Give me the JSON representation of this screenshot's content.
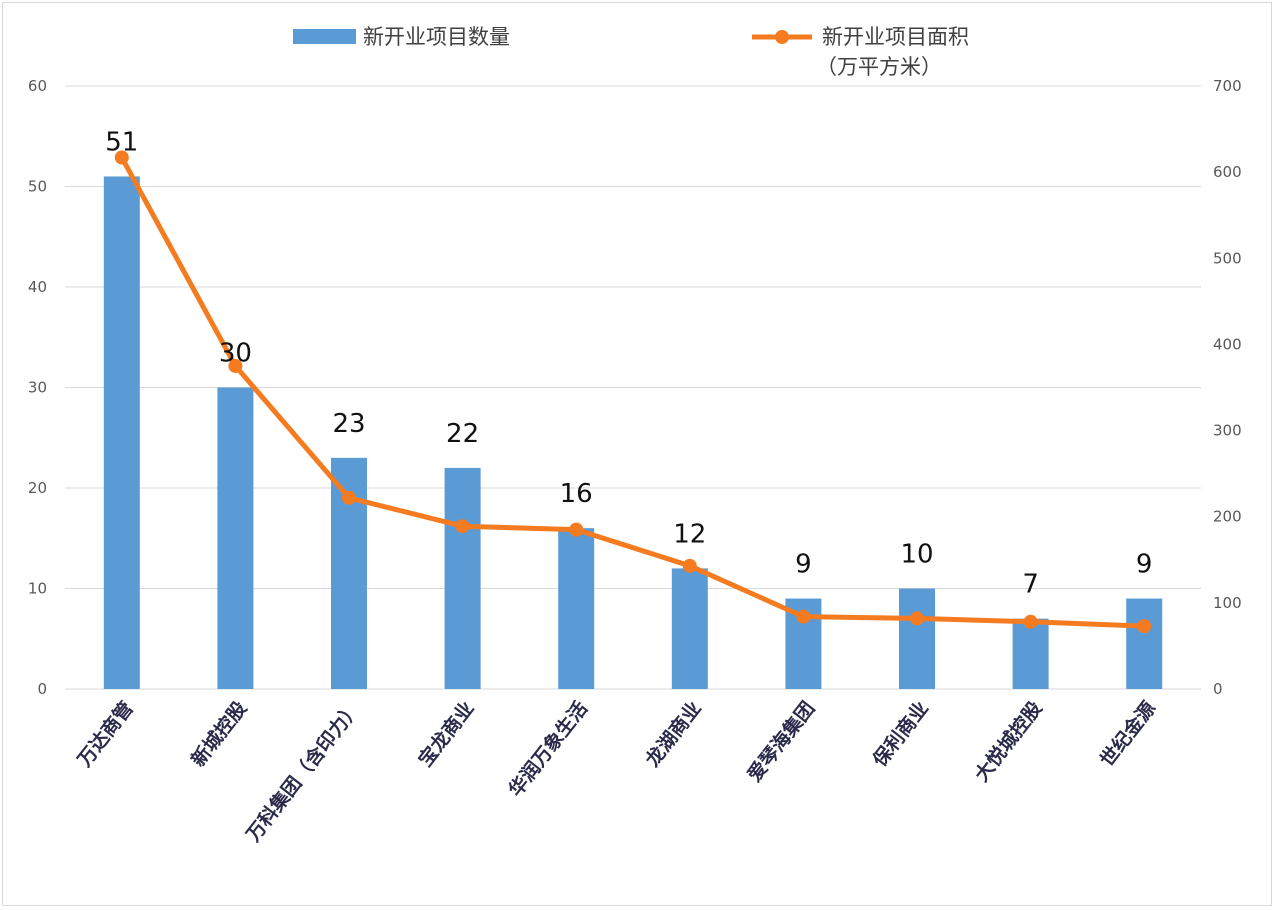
{
  "chart_data": {
    "type": "bar",
    "categories": [
      "万达商管",
      "新城控股",
      "万科集团（含印力）",
      "宝龙商业",
      "华润万象生活",
      "龙湖商业",
      "爱琴海集团",
      "保利商业",
      "大悦城控股",
      "世纪金源"
    ],
    "series": [
      {
        "name": "新开业项目数量",
        "type": "bar",
        "axis": "left",
        "color": "#5b9bd5",
        "values": [
          51,
          30,
          23,
          22,
          16,
          12,
          9,
          10,
          7,
          9
        ],
        "data_labels": [
          "51",
          "30",
          "23",
          "22",
          "16",
          "12",
          "9",
          "10",
          "7",
          "9"
        ]
      },
      {
        "name": "新开业项目面积",
        "name_line2": "（万平方米）",
        "type": "line",
        "axis": "right",
        "color": "#f47b20",
        "values": [
          617,
          375,
          222,
          189,
          185,
          143,
          84,
          82,
          78,
          73
        ]
      }
    ],
    "left_axis": {
      "ylim": [
        0,
        60
      ],
      "ticks": [
        "0",
        "10",
        "20",
        "30",
        "40",
        "50",
        "60"
      ]
    },
    "right_axis": {
      "ylim": [
        0,
        700
      ],
      "ticks": [
        "0",
        "100",
        "200",
        "300",
        "400",
        "500",
        "600",
        "700"
      ]
    },
    "grid": true,
    "legend": "top"
  }
}
